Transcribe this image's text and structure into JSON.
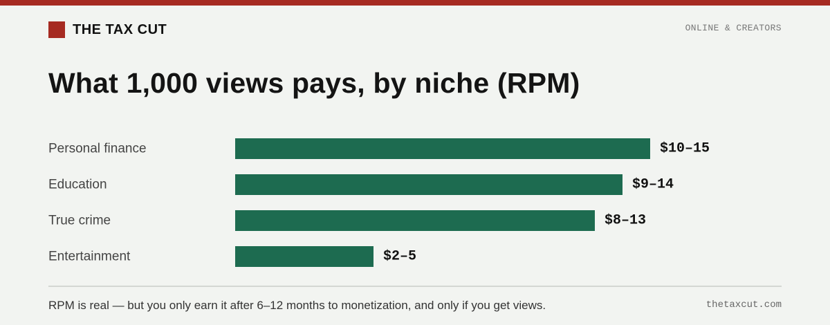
{
  "brand": {
    "name": "THE TAX CUT",
    "color": "#a62b22",
    "mark_icon": "square-logo-icon"
  },
  "section_tag": "ONLINE & CREATORS",
  "headline": "What 1,000 views pays, by niche (RPM)",
  "chart_data": {
    "type": "bar",
    "orientation": "horizontal",
    "title": "What 1,000 views pays, by niche (RPM)",
    "unit": "$ per 1,000 views",
    "categories": [
      "Personal finance",
      "Education",
      "True crime",
      "Entertainment"
    ],
    "ranges": [
      [
        10,
        15
      ],
      [
        9,
        14
      ],
      [
        8,
        13
      ],
      [
        2,
        5
      ]
    ],
    "values": [
      15,
      14,
      13,
      5
    ],
    "value_labels": [
      "$10–15",
      "$9–14",
      "$8–13",
      "$2–5"
    ],
    "xlim": [
      0,
      15
    ],
    "bar_color": "#1d6b50",
    "grid": false,
    "legend": "none"
  },
  "footnote": "RPM is real — but you only earn it after 6–12 months to monetization, and only if you get views.",
  "site": "thetaxcut.com"
}
